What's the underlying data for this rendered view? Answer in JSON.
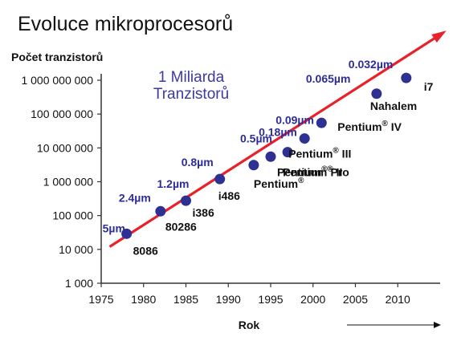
{
  "chart_data": {
    "type": "scatter",
    "title": "Evoluce mikroprocesorů",
    "xlabel": "Rok",
    "ylabel": "Počet tranzistorů",
    "xlim": [
      1975,
      2015
    ],
    "ylim": [
      1000,
      10000000000
    ],
    "y_scale": "log",
    "x_ticks": [
      1975,
      1980,
      1985,
      1990,
      1995,
      2000,
      2005,
      2010
    ],
    "y_ticks": [
      {
        "value": 1000,
        "label": "1 000"
      },
      {
        "value": 10000,
        "label": "10 000"
      },
      {
        "value": 100000,
        "label": "100 000"
      },
      {
        "value": 1000000,
        "label": "1 000 000"
      },
      {
        "value": 10000000,
        "label": "10 000 000"
      },
      {
        "value": 100000000,
        "label": "100 000 000"
      },
      {
        "value": 1000000000,
        "label": "1 000 000 000"
      }
    ],
    "annotation": [
      "1 Miliarda",
      "Tranzistorů"
    ],
    "trend_color": "#e8212a",
    "point_color": "#2e3192",
    "size_color": "#2d2d9a",
    "trend_line": {
      "x": [
        1976,
        2012
      ],
      "y": [
        12000,
        4500000000
      ]
    },
    "points": [
      {
        "x": 1978,
        "y": 29000,
        "name": "8086",
        "size": "5µm"
      },
      {
        "x": 1982,
        "y": 134000,
        "name": "80286",
        "size": "2.4µm"
      },
      {
        "x": 1985,
        "y": 275000,
        "name": "i386",
        "size": "1.2µm"
      },
      {
        "x": 1989,
        "y": 1200000,
        "name": "i486",
        "size": "0.8µm"
      },
      {
        "x": 1993,
        "y": 3100000,
        "name": "Pentium",
        "reg": "®",
        "name_suffix": "",
        "size": ""
      },
      {
        "x": 1995,
        "y": 5500000,
        "name": "Pentium",
        "reg": "®",
        "name_suffix": " Pro",
        "size": "0.5µm"
      },
      {
        "x": 1997,
        "y": 7500000,
        "name": "Pentium",
        "reg": "®",
        "name_suffix": " II",
        "size": "0.18µm"
      },
      {
        "x": 1999,
        "y": 19000000,
        "name": "Pentium",
        "reg": "®",
        "name_suffix": " III",
        "size": "0.09µm"
      },
      {
        "x": 2001,
        "y": 55000000,
        "name": "Pentium",
        "reg": "®",
        "name_suffix": " IV",
        "size": ""
      },
      {
        "x": 2007.5,
        "y": 400000000,
        "name": "Nahalem",
        "size": "0.065µm"
      },
      {
        "x": 2011,
        "y": 1170000000,
        "name": "i7",
        "size": "0.032µm"
      }
    ],
    "arrow_below_axis": true,
    "grid": false,
    "legend": "none"
  }
}
